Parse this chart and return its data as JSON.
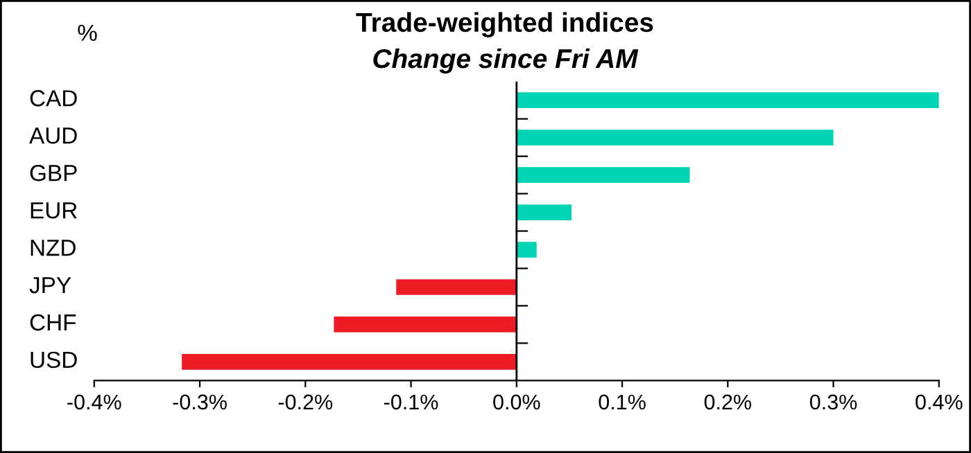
{
  "chart_data": {
    "type": "bar",
    "orientation": "horizontal",
    "title": "Trade-weighted indices",
    "subtitle": "Change since Fri AM",
    "ylabel": "%",
    "categories": [
      "CAD",
      "AUD",
      "GBP",
      "EUR",
      "NZD",
      "JPY",
      "CHF",
      "USD"
    ],
    "values": [
      0.4,
      0.3,
      0.164,
      0.052,
      0.019,
      -0.114,
      -0.173,
      -0.317
    ],
    "colors": [
      "#00d4b4",
      "#00d4b4",
      "#00d4b4",
      "#00d4b4",
      "#00d4b4",
      "#ed1c24",
      "#ed1c24",
      "#ed1c24"
    ],
    "xlim": [
      -0.4,
      0.4
    ],
    "xticks": [
      {
        "value": -0.4,
        "label": "-0.4%"
      },
      {
        "value": -0.3,
        "label": "-0.3%"
      },
      {
        "value": -0.2,
        "label": "-0.2%"
      },
      {
        "value": -0.1,
        "label": "-0.1%"
      },
      {
        "value": 0,
        "label": "0.0%"
      },
      {
        "value": 0.1,
        "label": "0.1%"
      },
      {
        "value": 0.2,
        "label": "0.2%"
      },
      {
        "value": 0.3,
        "label": "0.3%"
      },
      {
        "value": 0.4,
        "label": "0.4%"
      }
    ],
    "ref_lines": [
      {
        "axis": "x",
        "value": 0,
        "color": "#000000"
      }
    ],
    "grid": false,
    "legend": false
  }
}
